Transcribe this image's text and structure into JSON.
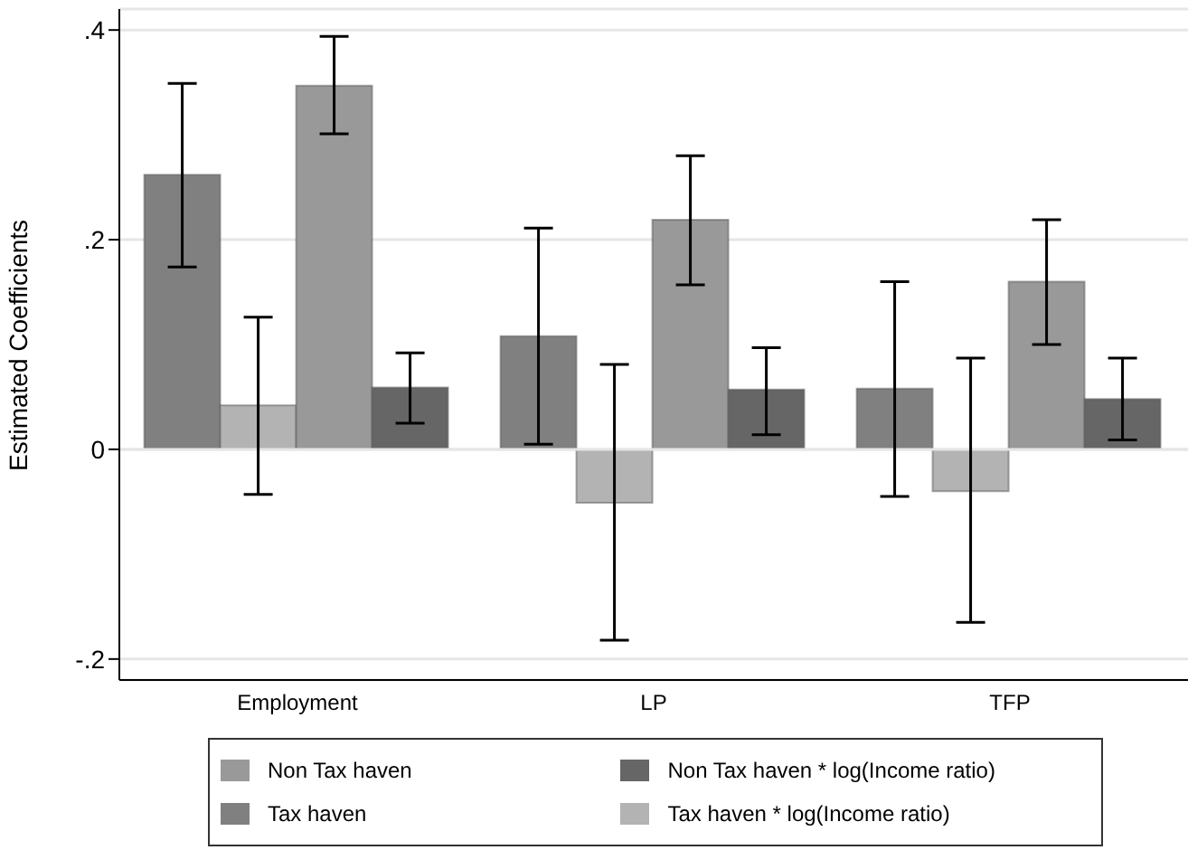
{
  "chart_data": {
    "type": "bar",
    "ylabel": "Estimated Coefficients",
    "categories": [
      "Employment",
      "LP",
      "TFP"
    ],
    "series": [
      {
        "name": "Tax haven",
        "color": "#808080",
        "values": [
          0.262,
          0.108,
          0.058
        ],
        "errors": [
          [
            0.174,
            0.349
          ],
          [
            0.005,
            0.211
          ],
          [
            -0.045,
            0.16
          ]
        ]
      },
      {
        "name": "Tax haven * log(Income ratio)",
        "color": "#b3b3b3",
        "values": [
          0.042,
          -0.051,
          -0.04
        ],
        "errors": [
          [
            -0.043,
            0.126
          ],
          [
            -0.182,
            0.081
          ],
          [
            -0.165,
            0.087
          ]
        ]
      },
      {
        "name": "Non Tax haven",
        "color": "#999999",
        "values": [
          0.347,
          0.219,
          0.16
        ],
        "errors": [
          [
            0.301,
            0.394
          ],
          [
            0.157,
            0.28
          ],
          [
            0.1,
            0.219
          ]
        ]
      },
      {
        "name": "Non Tax haven * log(Income ratio)",
        "color": "#666666",
        "values": [
          0.059,
          0.057,
          0.048
        ],
        "errors": [
          [
            0.025,
            0.092
          ],
          [
            0.014,
            0.097
          ],
          [
            0.009,
            0.087
          ]
        ]
      }
    ],
    "ylim": [
      -0.22,
      0.42
    ],
    "yticks": [
      {
        "value": -0.2,
        "label": "-.2"
      },
      {
        "value": 0,
        "label": "0"
      },
      {
        "value": 0.2,
        "label": ".2"
      },
      {
        "value": 0.4,
        "label": ".4"
      }
    ],
    "grid": "y",
    "legend": "bottom"
  }
}
